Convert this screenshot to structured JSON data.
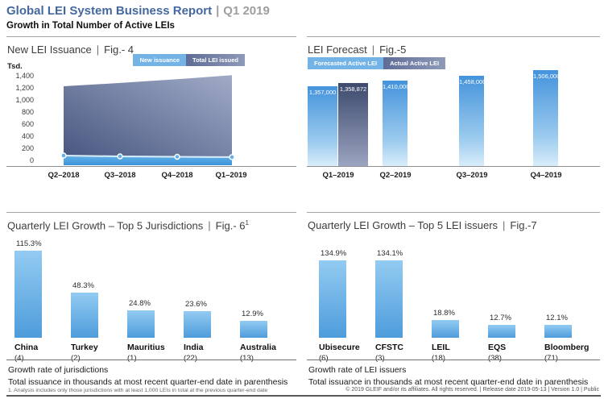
{
  "header": {
    "title": "Global LEI System Business Report",
    "pipe": "|",
    "period": "Q1 2019",
    "subtitle": "Growth in Total Number of Active LEIs"
  },
  "colors": {
    "brand_blue": "#44689e",
    "header_gray": "#9e9e9e",
    "legend_light_blue": "#74b3e6",
    "legend_slate": "#5e6c97",
    "legend_slate_light": "#8f9ab8",
    "forecast_bar_top": "#4493dc",
    "forecast_bar_mid": "#9ccbee",
    "forecast_bar_bottom": "#d9edfb",
    "actual_bar_top": "#3d4a6d",
    "actual_bar_bottom": "#9ba4c0",
    "growth_bar_top": "#93cbf2",
    "growth_bar_bottom": "#4e9cdb",
    "area_total_dark": "#45537d",
    "area_total_light": "#a0abc7",
    "issuance_top": "#63b0e8",
    "issuance_bottom": "#3b94dc",
    "issuance_stroke": "#d9edfb"
  },
  "chart_data": [
    {
      "id": "fig4",
      "type": "area",
      "title": "New LEI Issuance",
      "fig": "Fig.- 4",
      "unit": "Tsd.",
      "categories": [
        "Q2–2018",
        "Q3–2018",
        "Q4–2018",
        "Q1–2019"
      ],
      "series": [
        {
          "name": "New issuance",
          "values": [
            80,
            67,
            60,
            55
          ]
        },
        {
          "name": "Total LEI issued",
          "values": [
            1226,
            1281,
            1342,
            1410
          ]
        }
      ],
      "ylabel": "Tsd.",
      "ylim": [
        0,
        1400
      ],
      "yticks": [
        "1,400",
        "1,200",
        "1,000",
        "800",
        "600",
        "400",
        "200",
        "0"
      ],
      "legend_position": "top-right",
      "grid": false
    },
    {
      "id": "fig5",
      "type": "bar",
      "title": "LEI Forecast",
      "fig": "Fig.-5",
      "categories": [
        "Q1–2019",
        "Q2–2019",
        "Q3–2019",
        "Q4–2019"
      ],
      "series": [
        {
          "name": "Forecasted Active LEI",
          "values": [
            1357000,
            1410000,
            1458000,
            1506000
          ],
          "labels": [
            "1,357,000",
            "1,410,000",
            "1,458,000",
            "1,506,000"
          ]
        },
        {
          "name": "Actual Active LEI",
          "values": [
            1358872,
            null,
            null,
            null
          ],
          "labels": [
            "1,358,872",
            null,
            null,
            null
          ]
        }
      ],
      "legend_position": "top-left",
      "grid": false
    },
    {
      "id": "fig6",
      "type": "bar",
      "title": "Quarterly LEI Growth – Top 5 Jurisdictions",
      "fig": "Fig.- 6",
      "fig_superscript": "1",
      "categories": [
        "China",
        "Turkey",
        "Mauritius",
        "India",
        "Australia"
      ],
      "values": [
        115.3,
        48.3,
        24.8,
        23.6,
        12.9
      ],
      "value_labels": [
        "115.3%",
        "48.3%",
        "24.8%",
        "23.6%",
        "12.9%"
      ],
      "counts": [
        "(4)",
        "(2)",
        "(1)",
        "(22)",
        "(13)"
      ],
      "caption1": "Growth rate of jurisdictions",
      "caption2": "Total issuance in thousands at most recent quarter-end date in parenthesis",
      "footnote": "1. Analysis includes only those jurisdictions with at least 1,000 LEIs in total at the previous quarter-end date"
    },
    {
      "id": "fig7",
      "type": "bar",
      "title": "Quarterly LEI Growth – Top 5 LEI issuers",
      "fig": "Fig.-7",
      "categories": [
        "Ubisecure",
        "CFSTC",
        "LEIL",
        "EQS",
        "Bloomberg"
      ],
      "values": [
        134.9,
        134.1,
        18.8,
        12.7,
        12.1
      ],
      "value_labels": [
        "134.9%",
        "134.1%",
        "18.8%",
        "12.7%",
        "12.1%"
      ],
      "counts": [
        "(6)",
        "(3)",
        "(18)",
        "(38)",
        "(71)"
      ],
      "caption1": "Growth rate of LEI issuers",
      "caption2": "Total issuance in thousands at most recent quarter-end date in parenthesis"
    }
  ],
  "footer": {
    "text": "© 2019 GLEIF and/or its affiliates. All rights reserved.  |  Release date 2019-05-13  |  Version 1.0  |  Public"
  }
}
